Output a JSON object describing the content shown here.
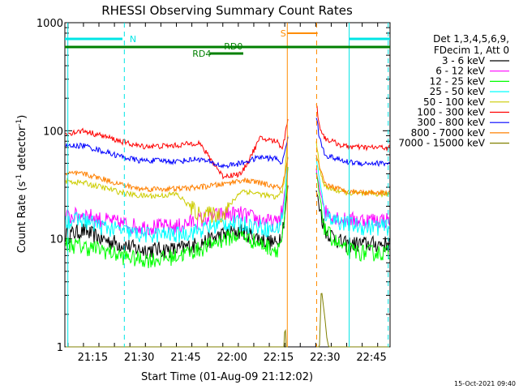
{
  "chart_data": {
    "type": "line",
    "title": "RHESSI Observing Summary Count Rates",
    "xlabel": "Start Time (01-Aug-09 21:12:02)",
    "ylabel_main": "Count Rate (s",
    "ylabel_sup1": "-1",
    "ylabel_mid": " detector",
    "ylabel_sup2": "-1",
    "ylabel_end": ")",
    "footer_timestamp": "15-Oct-2021 09:40",
    "x_range_min": [
      21.1,
      22.85
    ],
    "y_scale": "log",
    "ylim": [
      1,
      1000
    ],
    "x_ticks": [
      {
        "t": 21.25,
        "label": "21:15"
      },
      {
        "t": 21.5,
        "label": "21:30"
      },
      {
        "t": 21.75,
        "label": "21:45"
      },
      {
        "t": 22.0,
        "label": "22:00"
      },
      {
        "t": 22.25,
        "label": "22:15"
      },
      {
        "t": 22.5,
        "label": "22:30"
      },
      {
        "t": 22.75,
        "label": "22:45"
      }
    ],
    "y_ticks": [
      {
        "v": 1,
        "label": "1"
      },
      {
        "v": 10,
        "label": "10"
      },
      {
        "v": 100,
        "label": "100"
      },
      {
        "v": 1000,
        "label": "1000"
      }
    ],
    "legend": {
      "header": [
        "Det 1,3,4,5,6,9,",
        "FDecim 1, Att 0"
      ],
      "placement": "right"
    },
    "annotations": [
      {
        "text": "N",
        "color": "#00e5e5"
      },
      {
        "text": "RD0",
        "color": "#008000"
      },
      {
        "text": "RD4",
        "color": "#008000"
      },
      {
        "text": "S",
        "color": "#ff8c00"
      }
    ],
    "series": [
      {
        "name": "3 - 6 keV",
        "color": "#000000",
        "x": [
          21.12,
          21.2,
          21.3,
          21.4,
          21.5,
          21.6,
          21.7,
          21.82,
          21.95,
          22.05,
          22.15,
          22.24,
          22.27,
          22.285,
          22.3,
          22.45,
          22.47,
          22.5,
          22.6,
          22.7,
          22.8,
          22.85
        ],
        "y": [
          11,
          12,
          10,
          9,
          8,
          8,
          8,
          9,
          11,
          12,
          10,
          9,
          12,
          18,
          30,
          30,
          20,
          12,
          9,
          9,
          9,
          9
        ]
      },
      {
        "name": "6 - 12 keV",
        "color": "#ff00ff",
        "x": [
          21.12,
          21.2,
          21.3,
          21.4,
          21.5,
          21.6,
          21.7,
          21.82,
          21.95,
          22.05,
          22.15,
          22.24,
          22.27,
          22.285,
          22.3,
          22.45,
          22.47,
          22.5,
          22.6,
          22.7,
          22.8,
          22.85
        ],
        "y": [
          16,
          17,
          15,
          14,
          13,
          13,
          13,
          15,
          17,
          17,
          15,
          14,
          18,
          28,
          45,
          45,
          30,
          18,
          15,
          15,
          15,
          15
        ]
      },
      {
        "name": "12 - 25 keV",
        "color": "#00ff00",
        "x": [
          21.12,
          21.2,
          21.3,
          21.4,
          21.5,
          21.6,
          21.7,
          21.82,
          21.95,
          22.05,
          22.15,
          22.24,
          22.27,
          22.285,
          22.3,
          22.45,
          22.47,
          22.5,
          22.6,
          22.7,
          22.8,
          22.85
        ],
        "y": [
          9,
          8.5,
          8,
          7,
          6.5,
          6.5,
          7,
          8,
          10,
          11,
          9,
          8,
          10,
          16,
          45,
          45,
          25,
          12,
          8,
          7.5,
          7.5,
          7.5
        ]
      },
      {
        "name": "25 - 50 keV",
        "color": "#00ffff",
        "x": [
          21.12,
          21.2,
          21.3,
          21.4,
          21.5,
          21.6,
          21.7,
          21.82,
          21.95,
          22.05,
          22.15,
          22.24,
          22.27,
          22.285,
          22.3,
          22.45,
          22.47,
          22.5,
          22.6,
          22.7,
          22.8,
          22.85
        ],
        "y": [
          15,
          15,
          13,
          12,
          11,
          11,
          11,
          12,
          14,
          14,
          13,
          12,
          16,
          25,
          60,
          60,
          35,
          17,
          14,
          13,
          13,
          13
        ]
      },
      {
        "name": "50 - 100 keV",
        "color": "#cccc00",
        "x": [
          21.12,
          21.2,
          21.3,
          21.4,
          21.5,
          21.6,
          21.7,
          21.82,
          21.95,
          22.05,
          22.15,
          22.24,
          22.27,
          22.285,
          22.3,
          22.45,
          22.47,
          22.5,
          22.6,
          22.7,
          22.8,
          22.85
        ],
        "y": [
          34,
          33,
          30,
          27,
          25,
          25,
          26,
          17,
          17,
          28,
          26,
          24,
          28,
          40,
          90,
          90,
          45,
          30,
          27,
          26,
          26,
          26
        ]
      },
      {
        "name": "100 - 300 keV",
        "color": "#ff0000",
        "x": [
          21.12,
          21.2,
          21.3,
          21.4,
          21.5,
          21.6,
          21.7,
          21.82,
          21.95,
          22.05,
          22.15,
          22.24,
          22.27,
          22.285,
          22.3,
          22.45,
          22.47,
          22.5,
          22.6,
          22.7,
          22.8,
          22.85
        ],
        "y": [
          95,
          100,
          90,
          80,
          72,
          72,
          73,
          78,
          38,
          40,
          85,
          80,
          70,
          90,
          130,
          200,
          110,
          85,
          72,
          70,
          70,
          70
        ]
      },
      {
        "name": "300 - 800 keV",
        "color": "#0000ff",
        "x": [
          21.12,
          21.2,
          21.3,
          21.4,
          21.5,
          21.6,
          21.7,
          21.82,
          21.95,
          22.05,
          22.15,
          22.24,
          22.27,
          22.285,
          22.3,
          22.45,
          22.47,
          22.5,
          22.6,
          22.7,
          22.8,
          22.85
        ],
        "y": [
          72,
          73,
          65,
          58,
          53,
          53,
          52,
          55,
          47,
          50,
          57,
          55,
          50,
          65,
          90,
          150,
          85,
          60,
          52,
          50,
          50,
          50
        ]
      },
      {
        "name": "800 - 7000 keV",
        "color": "#ff8000",
        "x": [
          21.12,
          21.2,
          21.3,
          21.4,
          21.5,
          21.6,
          21.7,
          21.82,
          21.95,
          22.05,
          22.15,
          22.24,
          22.27,
          22.285,
          22.3,
          22.45,
          22.47,
          22.5,
          22.6,
          22.7,
          22.8,
          22.85
        ],
        "y": [
          40,
          40,
          36,
          32,
          29,
          29,
          29,
          30,
          32,
          35,
          33,
          30,
          30,
          40,
          55,
          60,
          45,
          32,
          28,
          27,
          27,
          27
        ]
      },
      {
        "name": "7000 - 15000 keV",
        "color": "#808000",
        "x": [
          22.28,
          22.285,
          22.29,
          22.31,
          22.32,
          22.33,
          22.47,
          22.48,
          22.49,
          22.5,
          22.51,
          22.52
        ],
        "y": [
          1,
          1.8,
          1.0,
          1.0,
          1.8,
          1.0,
          1.0,
          3.5,
          2.5,
          1.8,
          1.2,
          1.0
        ]
      }
    ]
  }
}
